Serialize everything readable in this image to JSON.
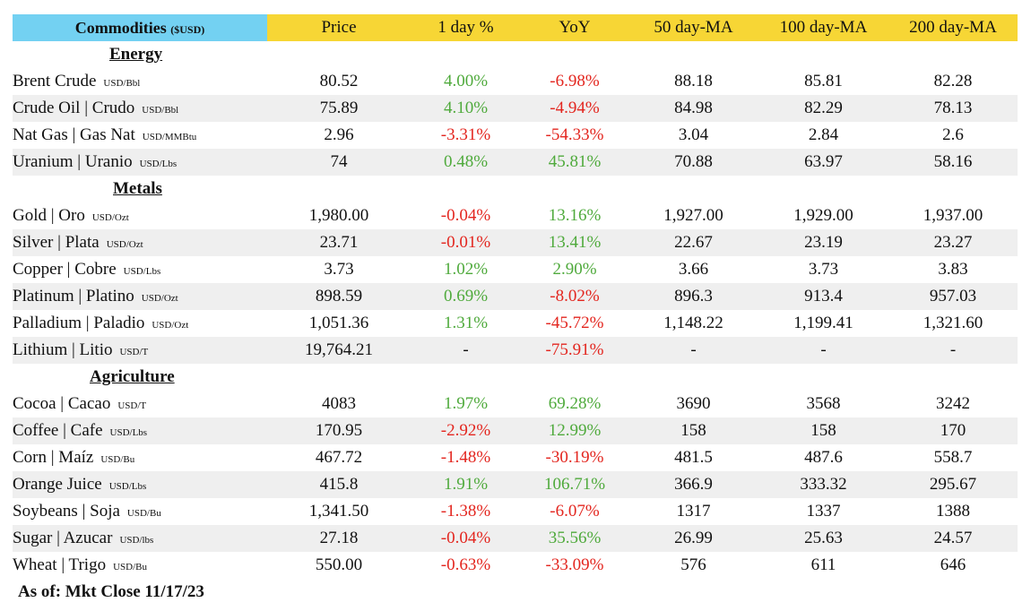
{
  "header": {
    "commodities": "Commodities",
    "currency": "($USD)",
    "price": "Price",
    "day": "1 day %",
    "yoy": "YoY",
    "ma50": "50 day-MA",
    "ma100": "100 day-MA",
    "ma200": "200 day-MA"
  },
  "colors": {
    "positive": "#4faa3c",
    "negative": "#e3261f",
    "header_bg": "#f7d635",
    "title_bg": "#73d1f2"
  },
  "sections": [
    {
      "title": "Energy",
      "rows": [
        {
          "name": "Brent  Crude",
          "unit": "USD/Bbl",
          "price": "80.52",
          "day": "4.00%",
          "yoy": "-6.98%",
          "ma50": "88.18",
          "ma100": "85.81",
          "ma200": "82.28"
        },
        {
          "name": "Crude Oil | Crudo",
          "unit": "USD/Bbl",
          "price": "75.89",
          "day": "4.10%",
          "yoy": "-4.94%",
          "ma50": "84.98",
          "ma100": "82.29",
          "ma200": "78.13"
        },
        {
          "name": "Nat Gas | Gas Nat",
          "unit": "USD/MMBtu",
          "price": "2.96",
          "day": "-3.31%",
          "yoy": "-54.33%",
          "ma50": "3.04",
          "ma100": "2.84",
          "ma200": "2.6"
        },
        {
          "name": "Uranium | Uranio",
          "unit": "USD/Lbs",
          "price": "74",
          "day": "0.48%",
          "yoy": "45.81%",
          "ma50": "70.88",
          "ma100": "63.97",
          "ma200": "58.16"
        }
      ]
    },
    {
      "title": "Metals",
      "rows": [
        {
          "name": "Gold | Oro",
          "unit": "USD/Ozt",
          "price": "1,980.00",
          "day": "-0.04%",
          "yoy": "13.16%",
          "ma50": "1,927.00",
          "ma100": "1,929.00",
          "ma200": "1,937.00"
        },
        {
          "name": "Silver | Plata",
          "unit": "USD/Ozt",
          "price": "23.71",
          "day": "-0.01%",
          "yoy": "13.41%",
          "ma50": "22.67",
          "ma100": "23.19",
          "ma200": "23.27"
        },
        {
          "name": "Copper | Cobre",
          "unit": "USD/Lbs",
          "price": "3.73",
          "day": "1.02%",
          "yoy": "2.90%",
          "ma50": "3.66",
          "ma100": "3.73",
          "ma200": "3.83"
        },
        {
          "name": "Platinum | Platino",
          "unit": "USD/Ozt",
          "price": "898.59",
          "day": "0.69%",
          "yoy": "-8.02%",
          "ma50": "896.3",
          "ma100": "913.4",
          "ma200": "957.03"
        },
        {
          "name": "Palladium | Paladio",
          "unit": "USD/Ozt",
          "price": "1,051.36",
          "day": "1.31%",
          "yoy": "-45.72%",
          "ma50": "1,148.22",
          "ma100": "1,199.41",
          "ma200": "1,321.60"
        },
        {
          "name": "Lithium | Litio",
          "unit": "USD/T",
          "price": "19,764.21",
          "day": "-",
          "yoy": "-75.91%",
          "ma50": "-",
          "ma100": "-",
          "ma200": "-"
        }
      ]
    },
    {
      "title": "Agriculture",
      "rows": [
        {
          "name": "Cocoa | Cacao",
          "unit": "USD/T",
          "price": "4083",
          "day": "1.97%",
          "yoy": "69.28%",
          "ma50": "3690",
          "ma100": "3568",
          "ma200": "3242"
        },
        {
          "name": "Coffee | Cafe",
          "unit": "USD/Lbs",
          "price": "170.95",
          "day": "-2.92%",
          "yoy": "12.99%",
          "ma50": "158",
          "ma100": "158",
          "ma200": "170"
        },
        {
          "name": "Corn | Maíz",
          "unit": "USD/Bu",
          "price": "467.72",
          "day": "-1.48%",
          "yoy": "-30.19%",
          "ma50": "481.5",
          "ma100": "487.6",
          "ma200": "558.7"
        },
        {
          "name": "Orange Juice",
          "unit": "USD/Lbs",
          "price": "415.8",
          "day": "1.91%",
          "yoy": "106.71%",
          "ma50": "366.9",
          "ma100": "333.32",
          "ma200": "295.67"
        },
        {
          "name": "Soybeans | Soja",
          "unit": "USD/Bu",
          "price": "1,341.50",
          "day": "-1.38%",
          "yoy": "-6.07%",
          "ma50": "1317",
          "ma100": "1337",
          "ma200": "1388"
        },
        {
          "name": "Sugar | Azucar",
          "unit": "USD/lbs",
          "price": "27.18",
          "day": "-0.04%",
          "yoy": "35.56%",
          "ma50": "26.99",
          "ma100": "25.63",
          "ma200": "24.57"
        },
        {
          "name": "Wheat | Trigo",
          "unit": "USD/Bu",
          "price": "550.00",
          "day": "-0.63%",
          "yoy": "-33.09%",
          "ma50": "576",
          "ma100": "611",
          "ma200": "646"
        }
      ]
    }
  ],
  "footer": "As of: Mkt Close 11/17/23"
}
